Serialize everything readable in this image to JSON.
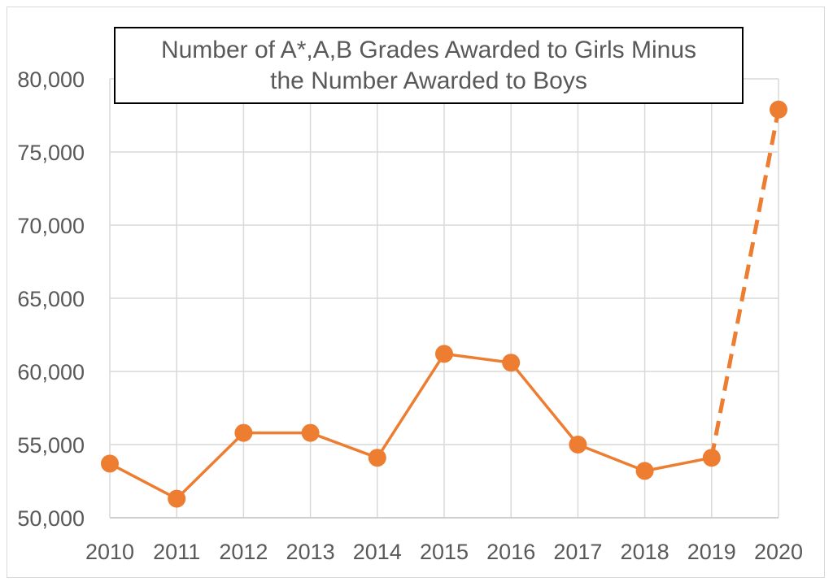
{
  "chart_data": {
    "type": "line",
    "title_lines": [
      "Number of A*,A,B Grades Awarded to Girls Minus",
      "the Number Awarded to Boys"
    ],
    "xlabel": "",
    "ylabel": "",
    "categories": [
      "2010",
      "2011",
      "2012",
      "2013",
      "2014",
      "2015",
      "2016",
      "2017",
      "2018",
      "2019",
      "2020"
    ],
    "series": [
      {
        "values": [
          53700,
          51300,
          55800,
          55800,
          54100,
          61200,
          60600,
          55000,
          53200,
          54100,
          77900
        ],
        "color": "#ed7d31",
        "dashed_from_index": 9
      }
    ],
    "ylim": [
      50000,
      80000
    ],
    "yticks": [
      50000,
      55000,
      60000,
      65000,
      70000,
      75000,
      80000
    ],
    "ytick_labels": [
      "50,000",
      "55,000",
      "60,000",
      "65,000",
      "70,000",
      "75,000",
      "80,000"
    ],
    "grid": true,
    "legend": "none"
  }
}
